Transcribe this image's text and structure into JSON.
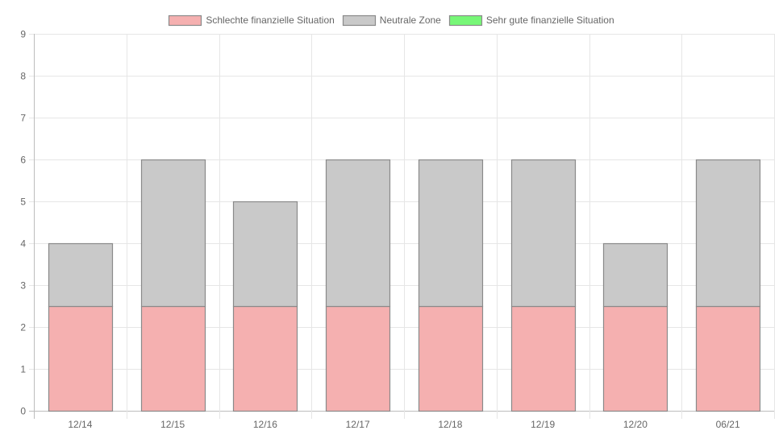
{
  "chart_data": {
    "type": "bar",
    "stacked": true,
    "categories": [
      "12/14",
      "12/15",
      "12/16",
      "12/17",
      "12/18",
      "12/19",
      "12/20",
      "06/21"
    ],
    "series": [
      {
        "name": "Schlechte finanzielle Situation",
        "values": [
          2.5,
          2.5,
          2.5,
          2.5,
          2.5,
          2.5,
          2.5,
          2.5
        ],
        "color": "#f5b0b0"
      },
      {
        "name": "Neutrale Zone",
        "values": [
          1.5,
          3.5,
          2.5,
          3.5,
          3.5,
          3.5,
          1.5,
          3.5
        ],
        "color": "#c9c9c9"
      },
      {
        "name": "Sehr gute finanzielle Situation",
        "values": [
          0,
          0,
          0,
          0,
          0,
          0,
          0,
          0
        ],
        "color": "#77f777"
      }
    ],
    "yticks": [
      "0",
      "1",
      "2",
      "3",
      "4",
      "5",
      "6",
      "7",
      "8",
      "9"
    ],
    "ylim": [
      0,
      9
    ],
    "grid": true,
    "legend_position": "top-center",
    "title": "",
    "xlabel": "",
    "ylabel": ""
  }
}
